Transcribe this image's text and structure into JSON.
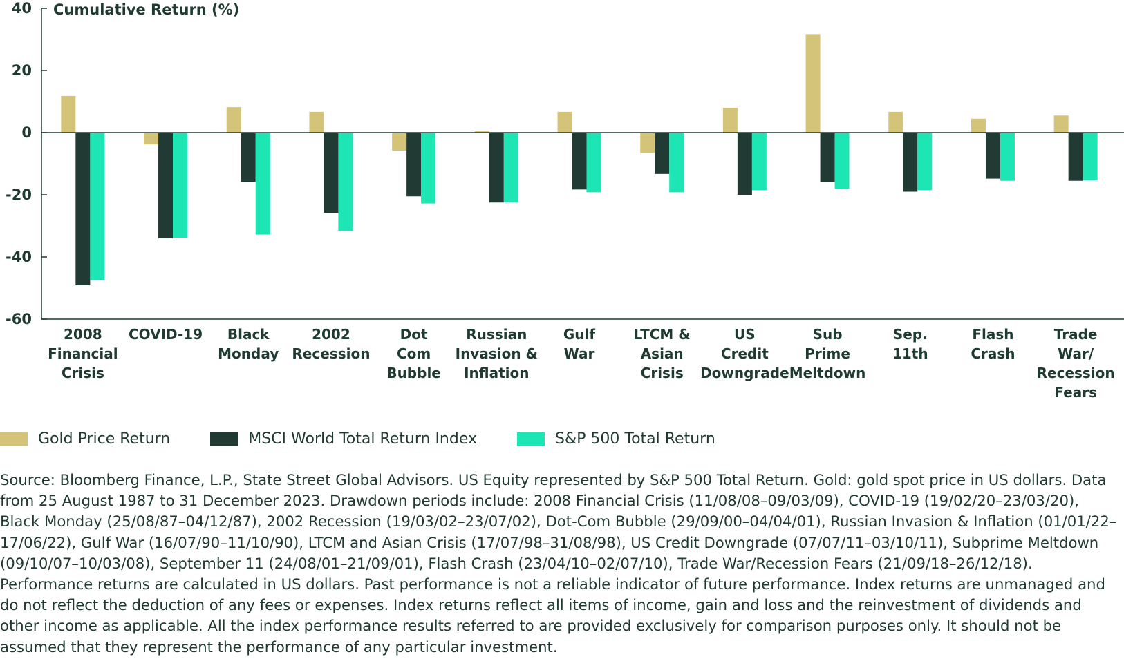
{
  "chart_data": {
    "type": "bar",
    "ylabel": "Cumulative Return (%)",
    "xlabel": "",
    "ylim": [
      -60,
      40
    ],
    "yticks": [
      40,
      20,
      0,
      -20,
      -40,
      -60
    ],
    "grid": false,
    "legend_position": "bottom-left",
    "categories": [
      "2008 Financial Crisis",
      "COVID-19",
      "Black Monday",
      "2002 Recession",
      "Dot Com Bubble",
      "Russian Invasion & Inflation",
      "Gulf War",
      "LTCM & Asian Crisis",
      "US Credit Downgrade",
      "Sub Prime Meltdown",
      "Sep. 11th",
      "Flash Crash",
      "Trade War/ Recession Fears"
    ],
    "category_lines": [
      [
        "2008",
        "Financial",
        "Crisis"
      ],
      [
        "COVID-19"
      ],
      [
        "Black",
        "Monday"
      ],
      [
        "2002",
        "Recession"
      ],
      [
        "Dot",
        "Com",
        "Bubble"
      ],
      [
        "Russian",
        "Invasion &",
        "Inflation"
      ],
      [
        "Gulf",
        "War"
      ],
      [
        "LTCM &",
        "Asian",
        "Crisis"
      ],
      [
        "US",
        "Credit",
        "Downgrade"
      ],
      [
        "Sub",
        "Prime",
        "Meltdown"
      ],
      [
        "Sep.",
        "11th"
      ],
      [
        "Flash",
        "Crash"
      ],
      [
        "Trade",
        "War/",
        "Recession",
        "Fears"
      ]
    ],
    "series": [
      {
        "name": "Gold Price Return",
        "color": "#d4c479",
        "values": [
          11.8,
          -3.8,
          8.2,
          6.7,
          -5.8,
          0.5,
          6.7,
          -6.5,
          8.0,
          31.7,
          6.7,
          4.5,
          5.5
        ]
      },
      {
        "name": "MSCI World Total Return Index",
        "color": "#213a33",
        "values": [
          -49.1,
          -34.0,
          -15.8,
          -25.8,
          -20.5,
          -22.5,
          -18.3,
          -13.3,
          -20.0,
          -16.0,
          -19.0,
          -14.8,
          -15.5
        ]
      },
      {
        "name": "S&P 500 Total Return",
        "color": "#1de5b3",
        "values": [
          -47.4,
          -33.8,
          -32.8,
          -31.6,
          -22.8,
          -22.4,
          -19.2,
          -19.2,
          -18.5,
          -18.0,
          -18.5,
          -15.5,
          -15.3
        ]
      }
    ]
  },
  "footnote": "Source: Bloomberg Finance, L.P., State Street Global Advisors. US Equity represented by S&P 500 Total Return. Gold: gold spot price in US dollars. Data from 25 August 1987 to 31 December 2023. Drawdown periods include: 2008 Financial Crisis (11/08/08–09/03/09), COVID-19 (19/02/20–23/03/20), Black Monday (25/08/87–04/12/87), 2002 Recession (19/03/02–23/07/02), Dot-Com Bubble (29/09/00–04/04/01), Russian Invasion & Inflation (01/01/22–17/06/22), Gulf War (16/07/90–11/10/90), LTCM and Asian Crisis (17/07/98–31/08/98), US Credit Downgrade (07/07/11–03/10/11), Subprime Meltdown (09/10/07–10/03/08), September 11 (24/08/01–21/09/01), Flash Crash (23/04/10–02/07/10), Trade War/Recession Fears (21/09/18–26/12/18). Performance returns are calculated in US dollars. Past performance is not a reliable indicator of future performance. Index returns are unmanaged and do not reflect the deduction of any fees or expenses. Index returns reflect all items of income, gain and loss and the reinvestment of dividends and other income as applicable. All the index performance results referred to are provided exclusively for comparison purposes only. It should not be assumed that they represent the performance of any particular investment."
}
